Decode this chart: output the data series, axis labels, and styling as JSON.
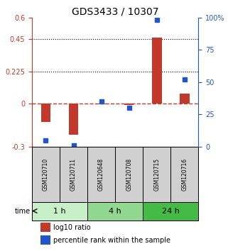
{
  "title": "GDS3433 / 10307",
  "samples": [
    "GSM120710",
    "GSM120711",
    "GSM120648",
    "GSM120708",
    "GSM120715",
    "GSM120716"
  ],
  "log10_ratio": [
    -0.13,
    -0.22,
    -0.005,
    -0.01,
    0.46,
    0.07
  ],
  "percentile_rank": [
    5,
    1,
    35,
    30,
    98,
    52
  ],
  "left_ylim": [
    -0.3,
    0.6
  ],
  "left_yticks": [
    -0.3,
    0,
    0.225,
    0.45,
    0.6
  ],
  "left_ytick_labels": [
    "-0.3",
    "0",
    "0.225",
    "0.45",
    "0.6"
  ],
  "right_ylim": [
    0,
    100
  ],
  "right_yticks": [
    0,
    25,
    50,
    75,
    100
  ],
  "right_ytick_labels": [
    "0",
    "25",
    "50",
    "75",
    "100%"
  ],
  "hlines": [
    0.225,
    0.45
  ],
  "bar_color": "#c0392b",
  "dot_color": "#2255cc",
  "zero_line_color": "#c0392b",
  "time_groups": [
    {
      "label": "1 h",
      "start": 0,
      "end": 2,
      "color": "#c8f0c8"
    },
    {
      "label": "4 h",
      "start": 2,
      "end": 4,
      "color": "#90d890"
    },
    {
      "label": "24 h",
      "start": 4,
      "end": 6,
      "color": "#44bb44"
    }
  ],
  "legend_bar_label": "log10 ratio",
  "legend_dot_label": "percentile rank within the sample",
  "background_color": "#ffffff"
}
